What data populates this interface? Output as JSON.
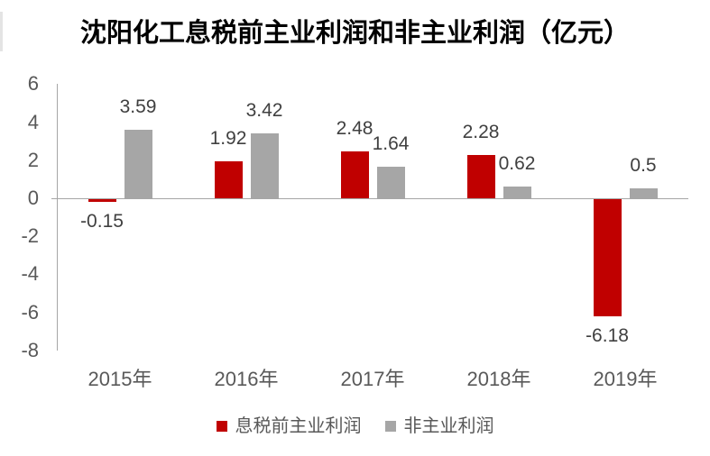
{
  "chart_data": {
    "type": "bar",
    "title": "沈阳化工息税前主业利润和非主业利润（亿元）",
    "categories": [
      "2015年",
      "2016年",
      "2017年",
      "2018年",
      "2019年"
    ],
    "series": [
      {
        "name": "息税前主业利润",
        "color": "#c00000",
        "values": [
          -0.15,
          1.92,
          2.48,
          2.28,
          -6.18
        ],
        "labels": [
          "-0.15",
          "1.92",
          "2.48",
          "2.28",
          "-6.18"
        ]
      },
      {
        "name": "非主业利润",
        "color": "#a6a6a6",
        "values": [
          3.59,
          3.42,
          1.64,
          0.62,
          0.5
        ],
        "labels": [
          "3.59",
          "3.42",
          "1.64",
          "0.62",
          "0.5"
        ]
      }
    ],
    "y_axis": {
      "min": -8,
      "max": 6,
      "step": 2,
      "ticks": [
        6,
        4,
        2,
        0,
        -2,
        -4,
        -6,
        -8
      ]
    },
    "grid": false,
    "legend_position": "bottom"
  }
}
